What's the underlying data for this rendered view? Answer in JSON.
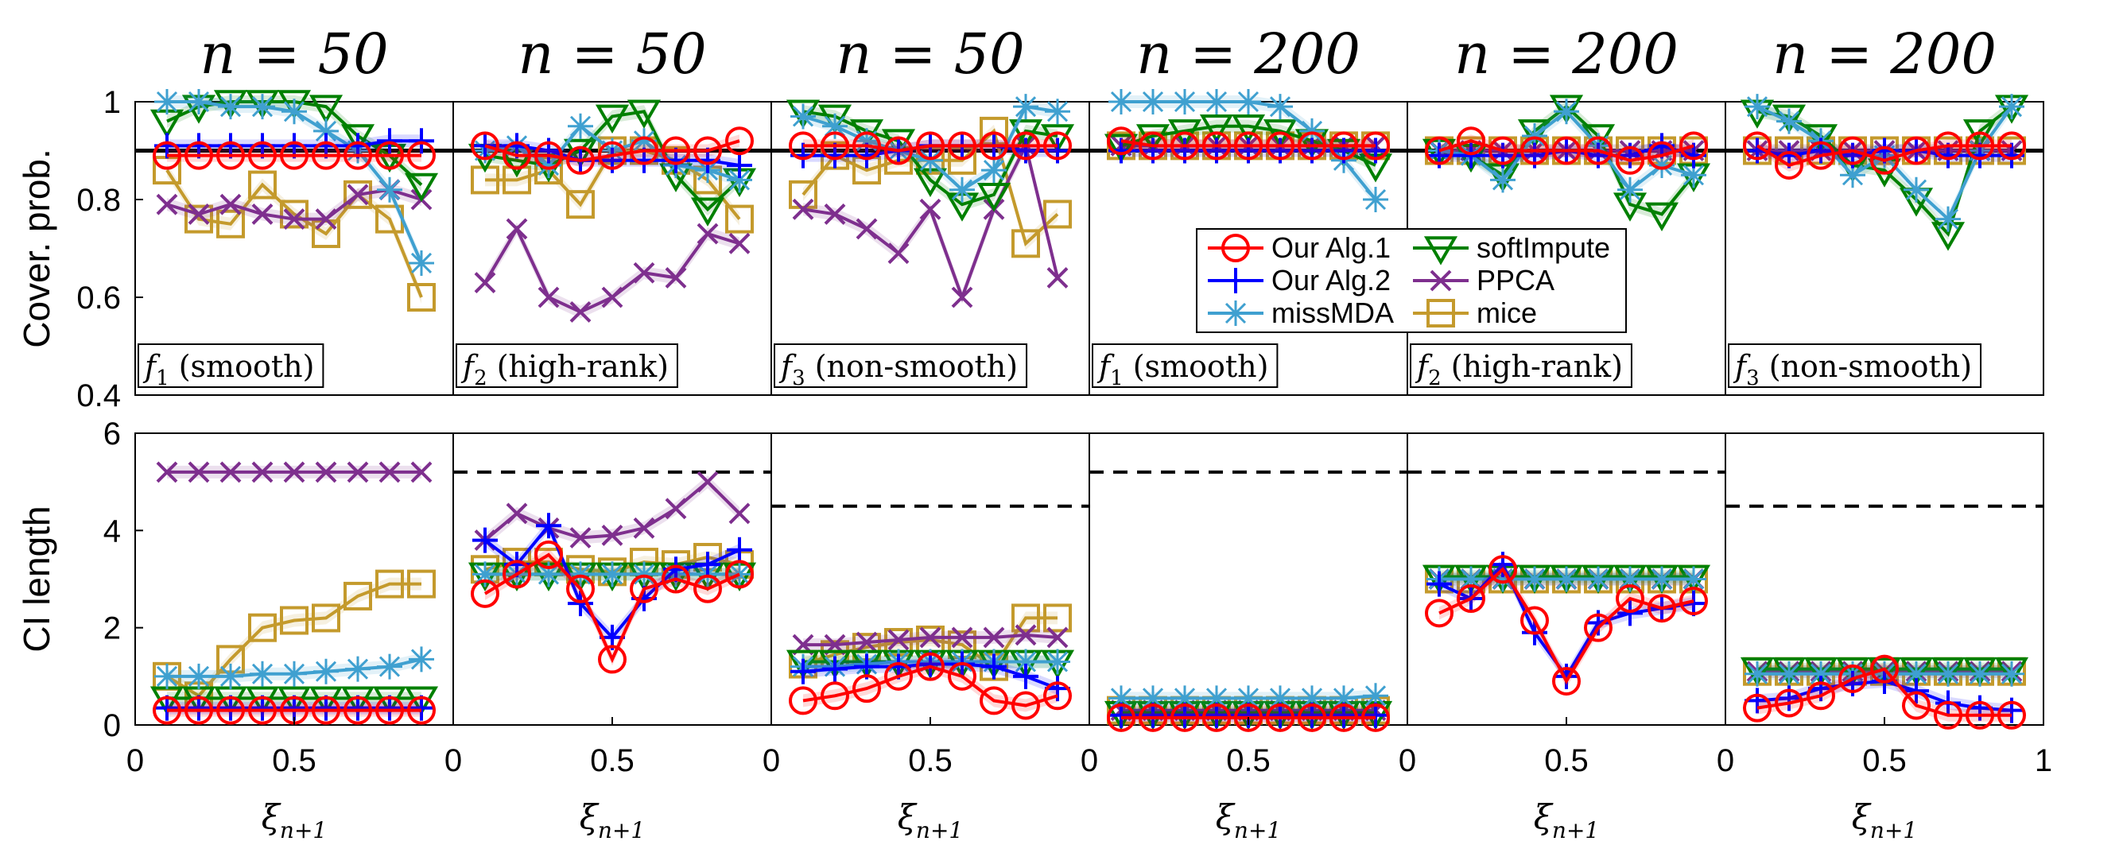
{
  "figure": {
    "panel_titles": [
      "n = 50",
      "n = 50",
      "n = 50",
      "n = 200",
      "n = 200",
      "n = 200"
    ],
    "function_labels": [
      {
        "sym": "f",
        "sub": "1",
        "desc": " (smooth)"
      },
      {
        "sym": "f",
        "sub": "2",
        "desc": " (high-rank)"
      },
      {
        "sym": "f",
        "sub": "3",
        "desc": " (non-smooth)"
      },
      {
        "sym": "f",
        "sub": "1",
        "desc": " (smooth)"
      },
      {
        "sym": "f",
        "sub": "2",
        "desc": " (high-rank)"
      },
      {
        "sym": "f",
        "sub": "3",
        "desc": " (non-smooth)"
      }
    ],
    "xlabel": {
      "sym": "ξ",
      "sub": "n+1"
    },
    "top_ylabel": "Cover. prob.",
    "bottom_ylabel": "CI length",
    "xticks": [
      "0",
      "0.5",
      "1"
    ],
    "top_yticks": [
      "0.4",
      "0.6",
      "0.8",
      "1"
    ],
    "bottom_yticks": [
      "0",
      "2",
      "4",
      "6"
    ],
    "legend": [
      {
        "name": "Our Alg.1",
        "color": "#ff0000",
        "marker": "circle"
      },
      {
        "name": "Our Alg.2",
        "color": "#0000ff",
        "marker": "plus"
      },
      {
        "name": "missMDA",
        "color": "#3fa0d0",
        "marker": "star"
      },
      {
        "name": "softImpute",
        "color": "#008000",
        "marker": "triangle-down"
      },
      {
        "name": "PPCA",
        "color": "#7e2f8e",
        "marker": "x"
      },
      {
        "name": "mice",
        "color": "#c49a2c",
        "marker": "square"
      }
    ]
  },
  "chart_data": {
    "type": "line",
    "x": [
      0.1,
      0.2,
      0.3,
      0.4,
      0.5,
      0.6,
      0.7,
      0.8,
      0.9
    ],
    "xlim": [
      0,
      1
    ],
    "coverage_ylim": [
      0.4,
      1.0
    ],
    "length_ylim": [
      0,
      6
    ],
    "nominal_coverage": 0.9,
    "panels": [
      {
        "title": "n = 50",
        "function": "f1 (smooth)",
        "coverage": {
          "Our Alg.1": [
            0.89,
            0.89,
            0.89,
            0.89,
            0.89,
            0.89,
            0.89,
            0.89,
            0.89
          ],
          "Our Alg.2": [
            0.91,
            0.91,
            0.91,
            0.91,
            0.91,
            0.91,
            0.91,
            0.92,
            0.92
          ],
          "missMDA": [
            1.0,
            1.0,
            0.99,
            0.99,
            0.98,
            0.94,
            0.9,
            0.82,
            0.67
          ],
          "softImpute": [
            0.96,
            0.99,
            1.0,
            1.0,
            1.0,
            0.99,
            0.93,
            0.89,
            0.83
          ],
          "PPCA": [
            0.79,
            0.77,
            0.79,
            0.77,
            0.76,
            0.76,
            0.81,
            0.82,
            0.8
          ],
          "mice": [
            0.86,
            0.76,
            0.75,
            0.83,
            0.77,
            0.73,
            0.81,
            0.76,
            0.6
          ]
        },
        "ci_length": {
          "Our Alg.1": [
            0.3,
            0.3,
            0.3,
            0.3,
            0.3,
            0.3,
            0.3,
            0.3,
            0.3
          ],
          "Our Alg.2": [
            0.35,
            0.35,
            0.35,
            0.35,
            0.35,
            0.35,
            0.35,
            0.35,
            0.35
          ],
          "missMDA": [
            1.0,
            1.0,
            1.0,
            1.05,
            1.05,
            1.1,
            1.15,
            1.2,
            1.35
          ],
          "softImpute": [
            0.55,
            0.55,
            0.55,
            0.55,
            0.55,
            0.55,
            0.55,
            0.55,
            0.55
          ],
          "PPCA": [
            5.2,
            5.2,
            5.2,
            5.2,
            5.2,
            5.2,
            5.2,
            5.2,
            5.2
          ],
          "mice": [
            1.0,
            0.6,
            1.35,
            2.0,
            2.15,
            2.2,
            2.65,
            2.9,
            2.9
          ]
        },
        "ci_reference": null
      },
      {
        "title": "n = 50",
        "function": "f2 (high-rank)",
        "coverage": {
          "Our Alg.1": [
            0.91,
            0.89,
            0.89,
            0.88,
            0.89,
            0.9,
            0.9,
            0.9,
            0.92
          ],
          "Our Alg.2": [
            0.91,
            0.91,
            0.9,
            0.88,
            0.88,
            0.88,
            0.88,
            0.88,
            0.87
          ],
          "missMDA": [
            0.9,
            0.91,
            0.87,
            0.95,
            0.9,
            0.92,
            0.87,
            0.86,
            0.84
          ],
          "softImpute": [
            0.89,
            0.88,
            0.87,
            0.9,
            0.97,
            0.98,
            0.85,
            0.78,
            0.84
          ],
          "PPCA": [
            0.63,
            0.74,
            0.6,
            0.57,
            0.6,
            0.65,
            0.64,
            0.73,
            0.71
          ],
          "mice": [
            0.84,
            0.84,
            0.86,
            0.79,
            0.9,
            0.9,
            0.88,
            0.84,
            0.76
          ]
        },
        "ci_length": {
          "Our Alg.1": [
            2.7,
            3.1,
            3.5,
            2.8,
            1.35,
            2.8,
            3.0,
            2.8,
            3.1
          ],
          "Our Alg.2": [
            3.8,
            3.3,
            4.1,
            2.5,
            1.8,
            2.6,
            3.2,
            3.3,
            3.6
          ],
          "missMDA": [
            3.1,
            3.1,
            3.1,
            3.1,
            3.1,
            3.1,
            3.1,
            3.1,
            3.1
          ],
          "softImpute": [
            3.1,
            3.1,
            3.1,
            3.1,
            3.1,
            3.1,
            3.1,
            3.1,
            3.1
          ],
          "PPCA": [
            3.8,
            4.35,
            4.05,
            3.85,
            3.9,
            4.05,
            4.45,
            5.0,
            4.35
          ],
          "mice": [
            3.2,
            3.35,
            3.35,
            3.2,
            3.15,
            3.35,
            3.3,
            3.45,
            3.3
          ]
        },
        "ci_reference": 5.2
      },
      {
        "title": "n = 50",
        "function": "f3 (non-smooth)",
        "coverage": {
          "Our Alg.1": [
            0.91,
            0.91,
            0.91,
            0.9,
            0.91,
            0.91,
            0.91,
            0.91,
            0.91
          ],
          "Our Alg.2": [
            0.89,
            0.89,
            0.89,
            0.9,
            0.91,
            0.91,
            0.91,
            0.9,
            0.9
          ],
          "missMDA": [
            0.97,
            0.95,
            0.92,
            0.9,
            0.88,
            0.82,
            0.86,
            0.99,
            0.98
          ],
          "softImpute": [
            0.98,
            0.97,
            0.94,
            0.92,
            0.84,
            0.79,
            0.81,
            0.94,
            0.93
          ],
          "PPCA": [
            0.78,
            0.77,
            0.74,
            0.69,
            0.78,
            0.6,
            0.78,
            0.91,
            0.64
          ],
          "mice": [
            0.81,
            0.89,
            0.86,
            0.88,
            0.88,
            0.88,
            0.94,
            0.71,
            0.77
          ]
        },
        "ci_length": {
          "Our Alg.1": [
            0.5,
            0.6,
            0.75,
            1.0,
            1.2,
            1.0,
            0.5,
            0.4,
            0.6
          ],
          "Our Alg.2": [
            1.1,
            1.15,
            1.2,
            1.2,
            1.25,
            1.25,
            1.2,
            1.0,
            0.75
          ],
          "missMDA": [
            1.2,
            1.2,
            1.25,
            1.3,
            1.3,
            1.3,
            1.3,
            1.3,
            1.3
          ],
          "softImpute": [
            1.3,
            1.3,
            1.3,
            1.3,
            1.3,
            1.3,
            1.3,
            1.3,
            1.3
          ],
          "PPCA": [
            1.65,
            1.65,
            1.7,
            1.75,
            1.8,
            1.8,
            1.8,
            1.85,
            1.8
          ],
          "mice": [
            1.25,
            1.45,
            1.6,
            1.7,
            1.75,
            1.65,
            1.2,
            2.2,
            2.2
          ]
        },
        "ci_reference": 4.5
      },
      {
        "title": "n = 200",
        "function": "f1 (smooth)",
        "coverage": {
          "Our Alg.1": [
            0.92,
            0.91,
            0.91,
            0.91,
            0.91,
            0.91,
            0.91,
            0.91,
            0.91
          ],
          "Our Alg.2": [
            0.9,
            0.9,
            0.9,
            0.9,
            0.9,
            0.9,
            0.9,
            0.9,
            0.9
          ],
          "missMDA": [
            1.0,
            1.0,
            1.0,
            1.0,
            1.0,
            0.99,
            0.94,
            0.88,
            0.8
          ],
          "softImpute": [
            0.91,
            0.93,
            0.94,
            0.95,
            0.95,
            0.94,
            0.92,
            0.9,
            0.87
          ],
          "PPCA": [
            0.91,
            0.91,
            0.91,
            0.91,
            0.91,
            0.91,
            0.91,
            0.91,
            0.91
          ],
          "mice": [
            0.91,
            0.91,
            0.91,
            0.91,
            0.91,
            0.91,
            0.91,
            0.91,
            0.91
          ]
        },
        "ci_length": {
          "Our Alg.1": [
            0.15,
            0.15,
            0.15,
            0.15,
            0.15,
            0.15,
            0.15,
            0.15,
            0.15
          ],
          "Our Alg.2": [
            0.2,
            0.2,
            0.2,
            0.2,
            0.2,
            0.2,
            0.2,
            0.2,
            0.2
          ],
          "missMDA": [
            0.55,
            0.55,
            0.55,
            0.55,
            0.55,
            0.55,
            0.55,
            0.55,
            0.6
          ],
          "softImpute": [
            0.25,
            0.25,
            0.25,
            0.25,
            0.25,
            0.25,
            0.25,
            0.25,
            0.25
          ],
          "PPCA": [
            0.3,
            0.3,
            0.3,
            0.3,
            0.3,
            0.3,
            0.3,
            0.3,
            0.3
          ],
          "mice": [
            0.3,
            0.3,
            0.3,
            0.3,
            0.3,
            0.3,
            0.3,
            0.3,
            0.3
          ]
        },
        "ci_reference": 5.2
      },
      {
        "title": "n = 200",
        "function": "f2 (high-rank)",
        "coverage": {
          "Our Alg.1": [
            0.9,
            0.92,
            0.9,
            0.9,
            0.9,
            0.9,
            0.88,
            0.89,
            0.91
          ],
          "Our Alg.2": [
            0.89,
            0.89,
            0.89,
            0.89,
            0.9,
            0.89,
            0.89,
            0.91,
            0.89
          ],
          "missMDA": [
            0.9,
            0.89,
            0.84,
            0.93,
            0.98,
            0.91,
            0.82,
            0.87,
            0.85
          ],
          "softImpute": [
            0.9,
            0.89,
            0.85,
            0.94,
            0.99,
            0.93,
            0.79,
            0.77,
            0.85
          ],
          "PPCA": [
            0.9,
            0.9,
            0.9,
            0.9,
            0.9,
            0.9,
            0.9,
            0.9,
            0.9
          ],
          "mice": [
            0.9,
            0.9,
            0.9,
            0.9,
            0.9,
            0.9,
            0.9,
            0.9,
            0.9
          ]
        },
        "ci_length": {
          "Our Alg.1": [
            2.3,
            2.6,
            3.2,
            2.15,
            0.9,
            2.0,
            2.6,
            2.4,
            2.55
          ],
          "Our Alg.2": [
            2.9,
            2.6,
            3.3,
            1.9,
            1.0,
            2.1,
            2.3,
            2.4,
            2.5
          ],
          "missMDA": [
            3.0,
            3.0,
            3.0,
            3.0,
            3.0,
            3.0,
            3.0,
            3.0,
            3.0
          ],
          "softImpute": [
            3.05,
            3.05,
            3.05,
            3.05,
            3.05,
            3.05,
            3.05,
            3.05,
            3.05
          ],
          "PPCA": [
            3.0,
            3.0,
            3.0,
            3.0,
            3.0,
            3.0,
            3.0,
            3.0,
            3.0
          ],
          "mice": [
            3.0,
            3.0,
            3.0,
            3.0,
            3.0,
            3.0,
            3.0,
            3.0,
            3.0
          ]
        },
        "ci_reference": 5.2
      },
      {
        "title": "n = 200",
        "function": "f3 (non-smooth)",
        "coverage": {
          "Our Alg.1": [
            0.91,
            0.87,
            0.89,
            0.9,
            0.88,
            0.9,
            0.91,
            0.91,
            0.91
          ],
          "Our Alg.2": [
            0.9,
            0.89,
            0.9,
            0.89,
            0.9,
            0.9,
            0.89,
            0.89,
            0.89
          ],
          "missMDA": [
            0.99,
            0.96,
            0.92,
            0.85,
            0.89,
            0.82,
            0.76,
            0.9,
            0.99
          ],
          "softImpute": [
            0.98,
            0.97,
            0.93,
            0.87,
            0.86,
            0.8,
            0.73,
            0.94,
            0.99
          ],
          "PPCA": [
            0.9,
            0.9,
            0.9,
            0.9,
            0.9,
            0.9,
            0.9,
            0.9,
            0.9
          ],
          "mice": [
            0.9,
            0.9,
            0.9,
            0.9,
            0.9,
            0.9,
            0.9,
            0.9,
            0.9
          ]
        },
        "ci_length": {
          "Our Alg.1": [
            0.35,
            0.45,
            0.6,
            0.95,
            1.15,
            0.4,
            0.2,
            0.2,
            0.2
          ],
          "Our Alg.2": [
            0.5,
            0.55,
            0.75,
            0.85,
            0.9,
            0.7,
            0.45,
            0.35,
            0.3
          ],
          "missMDA": [
            1.05,
            1.05,
            1.05,
            1.05,
            1.05,
            1.05,
            1.05,
            1.05,
            1.05
          ],
          "softImpute": [
            1.15,
            1.15,
            1.15,
            1.15,
            1.15,
            1.15,
            1.15,
            1.15,
            1.15
          ],
          "PPCA": [
            1.1,
            1.1,
            1.1,
            1.1,
            1.1,
            1.1,
            1.1,
            1.1,
            1.1
          ],
          "mice": [
            1.1,
            1.1,
            1.1,
            1.1,
            1.1,
            1.1,
            1.1,
            1.1,
            1.1
          ]
        },
        "ci_reference": 4.5
      }
    ]
  }
}
